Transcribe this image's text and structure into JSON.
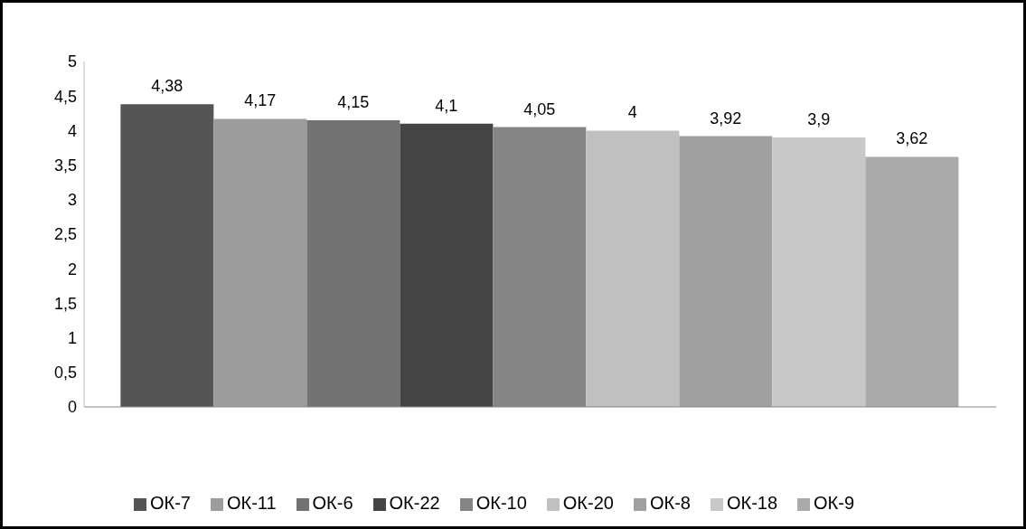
{
  "chart_data": {
    "type": "bar",
    "categories": [
      null
    ],
    "series": [
      {
        "name": "ОК-7",
        "color": "#555555",
        "values": [
          4.38
        ],
        "value_labels": [
          "4,38"
        ]
      },
      {
        "name": "ОК-11",
        "color": "#9c9c9c",
        "values": [
          4.17
        ],
        "value_labels": [
          "4,17"
        ]
      },
      {
        "name": "ОК-6",
        "color": "#727272",
        "values": [
          4.15
        ],
        "value_labels": [
          "4,15"
        ]
      },
      {
        "name": "ОК-22",
        "color": "#444444",
        "values": [
          4.1
        ],
        "value_labels": [
          "4,1"
        ]
      },
      {
        "name": "ОК-10",
        "color": "#858585",
        "values": [
          4.05
        ],
        "value_labels": [
          "4,05"
        ]
      },
      {
        "name": "ОК-20",
        "color": "#c0c0c0",
        "values": [
          4
        ],
        "value_labels": [
          "4"
        ]
      },
      {
        "name": "ОК-8",
        "color": "#a0a0a0",
        "values": [
          3.92
        ],
        "value_labels": [
          "3,92"
        ]
      },
      {
        "name": "ОК-18",
        "color": "#c8c8c8",
        "values": [
          3.9
        ],
        "value_labels": [
          "3,9"
        ]
      },
      {
        "name": "ОК-9",
        "color": "#aaaaaa",
        "values": [
          3.62
        ],
        "value_labels": [
          "3,62"
        ]
      }
    ],
    "ylim": [
      0,
      5
    ],
    "yticks": [
      0,
      {
        "value": 0.5,
        "label": "0,5"
      },
      1,
      {
        "value": 1.5,
        "label": "1,5"
      },
      2,
      {
        "value": 2.5,
        "label": "2,5"
      },
      3,
      {
        "value": 3.5,
        "label": "3,5"
      },
      4,
      {
        "value": 4.5,
        "label": "4,5"
      },
      5
    ],
    "grid": false,
    "legend": "bottom"
  }
}
